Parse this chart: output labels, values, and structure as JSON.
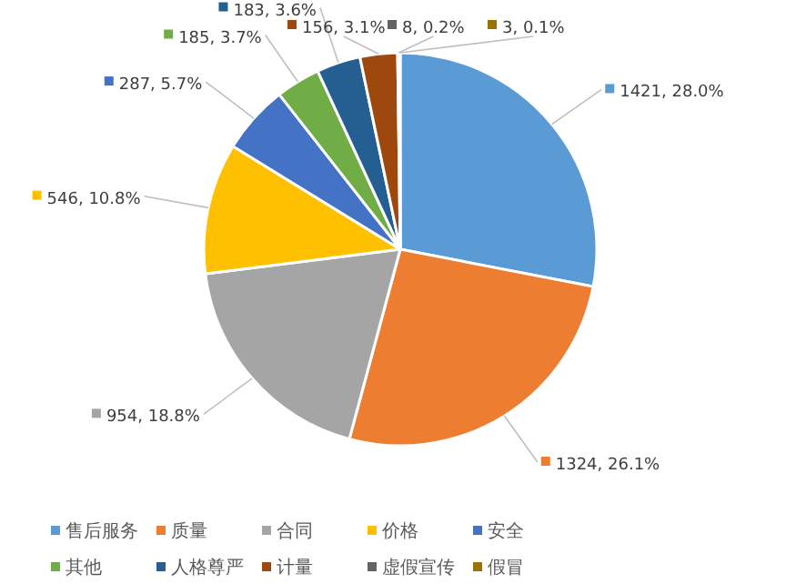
{
  "chart_data": {
    "type": "pie",
    "categories": [
      "售后服务",
      "质量",
      "合同",
      "价格",
      "安全",
      "其他",
      "人格尊严",
      "计量",
      "虚假宣传",
      "假冒"
    ],
    "values": [
      1421,
      1324,
      954,
      546,
      287,
      185,
      183,
      156,
      8,
      3
    ],
    "colors": [
      "#5b9bd5",
      "#ed7d31",
      "#a5a5a5",
      "#ffc000",
      "#4472c4",
      "#70ad47",
      "#255e91",
      "#9e480e",
      "#636363",
      "#997300"
    ],
    "value_labels": [
      "1421, 28.0%",
      "1324, 26.1%",
      "954, 18.8%",
      "546, 10.8%",
      "287, 5.7%",
      "185, 3.7%",
      "183, 3.6%",
      "156, 3.1%",
      "8, 0.2%",
      "3, 0.1%"
    ],
    "legend": "bottom"
  }
}
